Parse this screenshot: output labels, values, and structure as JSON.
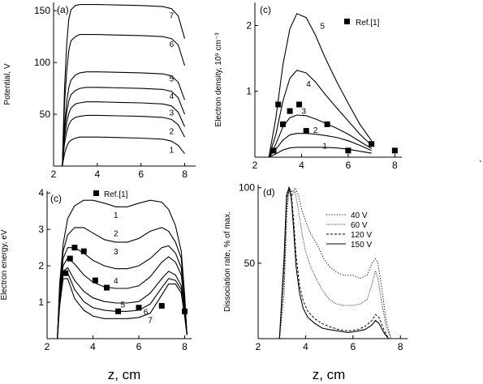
{
  "figure": {
    "bottom_xlabel_left": "z, cm",
    "bottom_xlabel_right": "z, cm",
    "stray_mark": "`"
  },
  "chart_data": [
    {
      "id": "a",
      "panel_label": "(a)",
      "type": "line",
      "xlabel": "",
      "ylabel": "Potential, V",
      "xlim": [
        2,
        8.5
      ],
      "ylim": [
        0,
        158
      ],
      "xticks": [
        2,
        4,
        6,
        8
      ],
      "yticks": [
        50,
        100,
        150
      ],
      "series": [
        {
          "name": "1",
          "label_at": [
            7.4,
            16
          ],
          "x": [
            2.4,
            2.5,
            2.6,
            2.7,
            2.8,
            3.0,
            3.2,
            3.5,
            4.0,
            5.0,
            6.0,
            7.0,
            7.4,
            7.7,
            8.0
          ],
          "y": [
            0,
            12,
            19,
            23,
            25,
            27,
            28,
            28,
            28,
            27.5,
            27,
            26,
            24,
            20,
            12
          ]
        },
        {
          "name": "2",
          "label_at": [
            7.4,
            34
          ],
          "x": [
            2.4,
            2.5,
            2.6,
            2.7,
            2.8,
            3.0,
            3.2,
            3.5,
            4.0,
            5.0,
            6.0,
            7.0,
            7.4,
            7.7,
            8.0
          ],
          "y": [
            0,
            22,
            33,
            40,
            44,
            47,
            48,
            49,
            49,
            48.5,
            48,
            47,
            45,
            40,
            28
          ]
        },
        {
          "name": "3",
          "label_at": [
            7.4,
            52
          ],
          "x": [
            2.4,
            2.5,
            2.6,
            2.7,
            2.8,
            3.0,
            3.2,
            3.5,
            4.0,
            5.0,
            6.0,
            7.0,
            7.4,
            7.7,
            8.0
          ],
          "y": [
            0,
            28,
            42,
            51,
            56,
            60,
            61,
            62,
            62,
            61.5,
            61,
            60,
            58,
            52,
            38
          ]
        },
        {
          "name": "4",
          "label_at": [
            7.4,
            68
          ],
          "x": [
            2.4,
            2.5,
            2.6,
            2.7,
            2.8,
            3.0,
            3.2,
            3.5,
            4.0,
            5.0,
            6.0,
            7.0,
            7.4,
            7.7,
            8.0
          ],
          "y": [
            0,
            34,
            52,
            63,
            69,
            73,
            75,
            76,
            76,
            75.5,
            75,
            74,
            72,
            66,
            50
          ]
        },
        {
          "name": "5",
          "label_at": [
            7.4,
            85
          ],
          "x": [
            2.4,
            2.5,
            2.6,
            2.7,
            2.8,
            3.0,
            3.2,
            3.5,
            4.0,
            5.0,
            6.0,
            7.0,
            7.4,
            7.7,
            8.0
          ],
          "y": [
            0,
            40,
            62,
            76,
            83,
            88,
            90,
            91,
            91,
            90.5,
            90,
            89,
            87,
            81,
            64
          ]
        },
        {
          "name": "6",
          "label_at": [
            7.4,
            118
          ],
          "x": [
            2.4,
            2.5,
            2.6,
            2.7,
            2.8,
            3.0,
            3.2,
            3.5,
            4.0,
            5.0,
            6.0,
            7.0,
            7.4,
            7.7,
            8.0
          ],
          "y": [
            0,
            60,
            92,
            112,
            121,
            125,
            127,
            127,
            127,
            126.5,
            126,
            125,
            123,
            117,
            97
          ]
        },
        {
          "name": "7",
          "label_at": [
            7.4,
            146
          ],
          "x": [
            2.4,
            2.5,
            2.6,
            2.7,
            2.8,
            3.0,
            3.2,
            3.5,
            4.0,
            5.0,
            6.0,
            7.0,
            7.4,
            7.7,
            8.0
          ],
          "y": [
            0,
            75,
            118,
            142,
            151,
            155,
            156,
            156,
            156,
            155.5,
            155,
            154,
            152,
            145,
            123
          ]
        }
      ]
    },
    {
      "id": "b",
      "panel_label": "(c)",
      "type": "line",
      "xlabel": "",
      "ylabel": "Electron density, 10⁹ cm⁻³",
      "xlim": [
        2,
        8.3
      ],
      "ylim": [
        0,
        2.35
      ],
      "xticks": [
        2,
        4,
        6,
        8
      ],
      "yticks": [
        1,
        2
      ],
      "legend": {
        "entries": [
          "Ref.[1]"
        ],
        "placement": "top-right"
      },
      "series": [
        {
          "name": "1",
          "label_at": [
            5.0,
            0.18
          ],
          "x": [
            2.6,
            2.9,
            3.2,
            3.5,
            3.8,
            4.2,
            4.6,
            5.0,
            5.5,
            6.0,
            6.5,
            7.0
          ],
          "y": [
            0,
            0.05,
            0.11,
            0.14,
            0.15,
            0.15,
            0.15,
            0.15,
            0.14,
            0.12,
            0.09,
            0.06
          ]
        },
        {
          "name": "2",
          "label_at": [
            4.6,
            0.42
          ],
          "x": [
            2.6,
            2.9,
            3.2,
            3.5,
            3.8,
            4.2,
            4.6,
            5.0,
            5.5,
            6.0,
            6.5,
            7.0
          ],
          "y": [
            0,
            0.12,
            0.26,
            0.34,
            0.36,
            0.36,
            0.35,
            0.33,
            0.3,
            0.25,
            0.18,
            0.1
          ]
        },
        {
          "name": "3",
          "label_at": [
            4.1,
            0.71
          ],
          "x": [
            2.6,
            2.9,
            3.2,
            3.5,
            3.8,
            4.2,
            4.6,
            5.0,
            5.5,
            6.0,
            6.5,
            7.0
          ],
          "y": [
            0,
            0.2,
            0.46,
            0.6,
            0.64,
            0.63,
            0.58,
            0.52,
            0.44,
            0.35,
            0.24,
            0.13
          ]
        },
        {
          "name": "4",
          "label_at": [
            4.3,
            1.12
          ],
          "x": [
            2.6,
            2.9,
            3.2,
            3.5,
            3.8,
            4.2,
            4.6,
            5.0,
            5.5,
            6.0,
            6.5,
            7.0
          ],
          "y": [
            0,
            0.35,
            0.85,
            1.2,
            1.32,
            1.28,
            1.14,
            0.96,
            0.75,
            0.55,
            0.35,
            0.18
          ]
        },
        {
          "name": "5",
          "label_at": [
            4.9,
            2.0
          ],
          "x": [
            2.6,
            2.9,
            3.2,
            3.5,
            3.8,
            4.2,
            4.6,
            5.0,
            5.5,
            6.0,
            6.5,
            7.0
          ],
          "y": [
            0,
            0.6,
            1.4,
            1.95,
            2.18,
            2.12,
            1.85,
            1.52,
            1.15,
            0.82,
            0.5,
            0.25
          ]
        }
      ],
      "points": {
        "name": "Ref.[1]",
        "x": [
          2.8,
          3.0,
          3.2,
          3.5,
          3.9,
          4.2,
          5.1,
          6.0,
          7.0,
          8.0
        ],
        "y": [
          0.1,
          0.8,
          0.5,
          0.7,
          0.8,
          0.4,
          0.5,
          0.1,
          0.2,
          0.1
        ]
      }
    },
    {
      "id": "c",
      "panel_label": "(c)",
      "type": "line",
      "xlabel": "z, cm",
      "ylabel": "Electron energy, eV",
      "xlim": [
        2,
        8.3
      ],
      "ylim": [
        0,
        4.05
      ],
      "xticks": [
        2,
        4,
        6,
        8
      ],
      "yticks": [
        1,
        2,
        3,
        4
      ],
      "legend": {
        "entries": [
          "Ref.[1]"
        ],
        "placement": "top-center"
      },
      "series": [
        {
          "name": "1",
          "label_at": [
            5.0,
            3.4
          ],
          "x": [
            2.45,
            2.55,
            2.7,
            2.9,
            3.2,
            3.6,
            4.0,
            4.5,
            5.0,
            5.5,
            6.0,
            6.5,
            7.0,
            7.3,
            7.6,
            7.85,
            8.0,
            8.1
          ],
          "y": [
            0,
            1.5,
            2.6,
            3.3,
            3.65,
            3.8,
            3.8,
            3.72,
            3.62,
            3.62,
            3.72,
            3.8,
            3.75,
            3.55,
            3.1,
            2.4,
            1.2,
            0.1
          ]
        },
        {
          "name": "2",
          "label_at": [
            5.0,
            2.9
          ],
          "x": [
            2.45,
            2.55,
            2.7,
            2.9,
            3.2,
            3.6,
            4.0,
            4.5,
            5.0,
            5.5,
            6.0,
            6.5,
            7.0,
            7.3,
            7.6,
            7.85,
            8.0,
            8.1
          ],
          "y": [
            0,
            1.4,
            2.4,
            2.85,
            3.05,
            3.05,
            2.9,
            2.72,
            2.65,
            2.65,
            2.75,
            2.95,
            3.05,
            2.95,
            2.65,
            2.2,
            1.1,
            0.1
          ]
        },
        {
          "name": "3",
          "label_at": [
            5.0,
            2.4
          ],
          "x": [
            2.45,
            2.55,
            2.7,
            2.9,
            3.2,
            3.6,
            4.0,
            4.5,
            5.0,
            5.5,
            6.0,
            6.5,
            7.0,
            7.3,
            7.6,
            7.85,
            8.0,
            8.1
          ],
          "y": [
            0,
            1.3,
            2.2,
            2.5,
            2.5,
            2.35,
            2.15,
            2.0,
            1.92,
            1.92,
            2.0,
            2.2,
            2.5,
            2.55,
            2.35,
            1.95,
            1.0,
            0.1
          ]
        },
        {
          "name": "4",
          "label_at": [
            5.0,
            1.6
          ],
          "x": [
            2.45,
            2.55,
            2.7,
            2.9,
            3.2,
            3.6,
            4.0,
            4.5,
            5.0,
            5.5,
            6.0,
            6.5,
            7.0,
            7.3,
            7.6,
            7.85,
            8.0,
            8.1
          ],
          "y": [
            0,
            1.2,
            2.0,
            2.22,
            2.05,
            1.75,
            1.55,
            1.42,
            1.38,
            1.38,
            1.45,
            1.7,
            2.1,
            2.25,
            2.1,
            1.75,
            0.9,
            0.1
          ]
        },
        {
          "name": "5",
          "label_at": [
            5.3,
            0.95
          ],
          "x": [
            2.45,
            2.55,
            2.7,
            2.9,
            3.2,
            3.6,
            4.0,
            4.5,
            5.0,
            5.5,
            6.0,
            6.5,
            7.0,
            7.3,
            7.6,
            7.85,
            8.0,
            8.1
          ],
          "y": [
            0,
            1.1,
            1.85,
            1.95,
            1.6,
            1.3,
            1.12,
            1.02,
            0.98,
            0.98,
            1.02,
            1.25,
            1.65,
            1.85,
            1.75,
            1.45,
            0.8,
            0.1
          ]
        },
        {
          "name": "6",
          "label_at": [
            6.3,
            0.75
          ],
          "x": [
            2.45,
            2.55,
            2.7,
            2.9,
            3.2,
            3.6,
            4.0,
            4.5,
            5.0,
            5.5,
            6.0,
            6.5,
            7.0,
            7.3,
            7.6,
            7.85,
            8.0,
            8.1
          ],
          "y": [
            0,
            1.0,
            1.75,
            1.8,
            1.35,
            1.02,
            0.85,
            0.78,
            0.75,
            0.75,
            0.78,
            0.95,
            1.4,
            1.65,
            1.6,
            1.35,
            0.7,
            0.1
          ]
        },
        {
          "name": "7",
          "label_at": [
            6.5,
            0.52
          ],
          "x": [
            2.45,
            2.55,
            2.7,
            2.9,
            3.2,
            3.6,
            4.0,
            4.5,
            5.0,
            5.5,
            6.0,
            6.5,
            7.0,
            7.3,
            7.6,
            7.85,
            8.0,
            8.1
          ],
          "y": [
            0,
            0.9,
            1.65,
            1.65,
            1.1,
            0.78,
            0.62,
            0.55,
            0.55,
            0.55,
            0.58,
            0.7,
            1.2,
            1.5,
            1.5,
            1.25,
            0.6,
            0.1
          ]
        }
      ],
      "points": {
        "name": "Ref.[1]",
        "x": [
          2.8,
          3.0,
          3.2,
          3.6,
          4.1,
          4.6,
          5.1,
          6.0,
          7.0,
          8.0
        ],
        "y": [
          1.8,
          2.2,
          2.5,
          2.4,
          1.6,
          1.4,
          0.75,
          0.85,
          0.9,
          0.75
        ]
      }
    },
    {
      "id": "d",
      "panel_label": "(d)",
      "type": "line",
      "xlabel": "z, cm",
      "ylabel": "Dissociation rate, % of max.",
      "xlim": [
        2,
        8.3
      ],
      "ylim": [
        0,
        102
      ],
      "xticks": [
        2,
        4,
        6,
        8
      ],
      "yticks": [
        50,
        100
      ],
      "legend": {
        "entries": [
          "40 V",
          "60 V",
          "120 V",
          "150 V"
        ],
        "placement": "top-right"
      },
      "series": [
        {
          "name": "40 V",
          "style": "dot",
          "x": [
            2.9,
            3.1,
            3.2,
            3.3,
            3.45,
            3.55,
            3.7,
            3.85,
            4.0,
            4.2,
            4.5,
            4.8,
            5.0,
            5.3,
            5.6,
            6.0,
            6.3,
            6.6,
            6.8,
            6.95,
            7.05,
            7.2,
            7.4,
            7.6
          ],
          "y": [
            0,
            30,
            80,
            100,
            97,
            100,
            95,
            85,
            78,
            70,
            62,
            52,
            48,
            44,
            42,
            42,
            40,
            42,
            50,
            53,
            50,
            35,
            12,
            0
          ]
        },
        {
          "name": "60 V",
          "style": "dot-fine",
          "x": [
            2.9,
            3.1,
            3.2,
            3.3,
            3.45,
            3.55,
            3.7,
            3.85,
            4.0,
            4.2,
            4.5,
            4.8,
            5.0,
            5.3,
            5.6,
            6.0,
            6.3,
            6.6,
            6.8,
            6.95,
            7.05,
            7.2,
            7.4,
            7.6
          ],
          "y": [
            0,
            40,
            85,
            100,
            95,
            98,
            85,
            70,
            58,
            48,
            38,
            30,
            26,
            23,
            22,
            22,
            23,
            26,
            36,
            45,
            40,
            25,
            8,
            0
          ]
        },
        {
          "name": "120 V",
          "style": "dash",
          "x": [
            2.9,
            3.1,
            3.2,
            3.3,
            3.4,
            3.5,
            3.6,
            3.75,
            3.9,
            4.1,
            4.4,
            4.7,
            5.0,
            5.4,
            5.8,
            6.2,
            6.5,
            6.8,
            6.95,
            7.1,
            7.3,
            7.5
          ],
          "y": [
            0,
            50,
            92,
            100,
            96,
            78,
            55,
            35,
            25,
            18,
            13,
            10,
            8,
            6,
            5,
            6,
            8,
            12,
            16,
            14,
            6,
            0
          ]
        },
        {
          "name": "150 V",
          "style": "solid",
          "x": [
            2.9,
            3.1,
            3.2,
            3.3,
            3.4,
            3.5,
            3.6,
            3.75,
            3.9,
            4.1,
            4.4,
            4.7,
            5.0,
            5.4,
            5.8,
            6.2,
            6.5,
            6.8,
            6.95,
            7.1,
            7.3,
            7.5
          ],
          "y": [
            0,
            55,
            95,
            100,
            93,
            72,
            48,
            30,
            20,
            14,
            10,
            7,
            6,
            5,
            4,
            5,
            6,
            9,
            12,
            10,
            4,
            0
          ]
        }
      ]
    }
  ]
}
